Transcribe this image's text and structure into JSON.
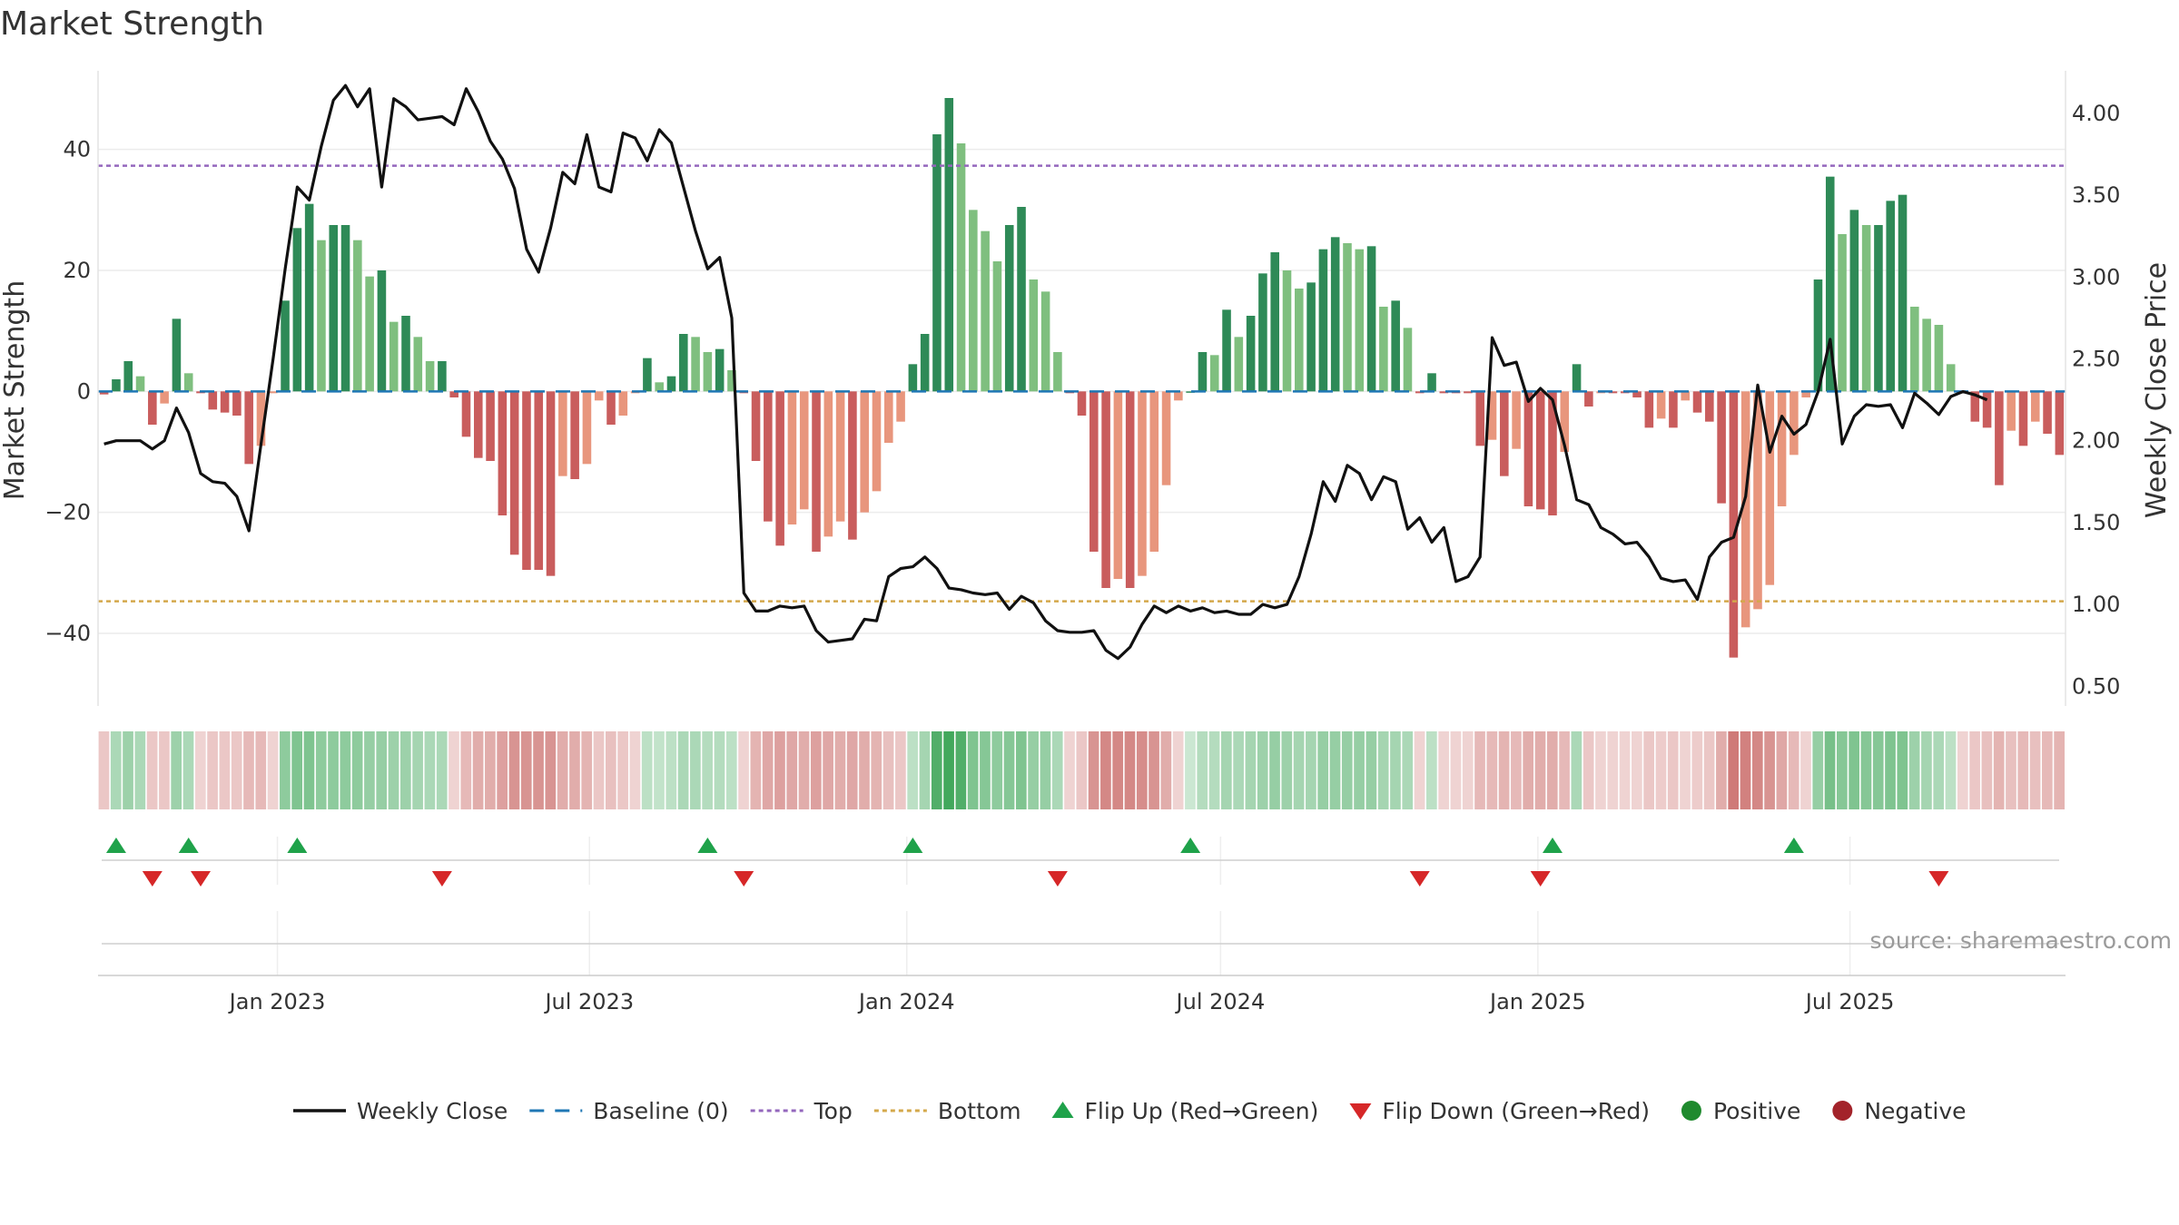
{
  "chart_data": {
    "type": "bar",
    "title": "Market Strength",
    "ylabel_left": "Market Strength",
    "ylabel_right": "Weekly Close Price",
    "ylim_left": [
      -52,
      53
    ],
    "ylim_right": [
      0.38,
      4.26
    ],
    "yticks_left": [
      40,
      20,
      0,
      -20,
      -40
    ],
    "yticks_left_labels": [
      "40",
      "20",
      "0",
      "−20",
      "−40"
    ],
    "yticks_right": [
      4.0,
      3.5,
      3.0,
      2.5,
      2.0,
      1.5,
      1.0,
      0.5
    ],
    "yticks_right_labels": [
      "4.00",
      "3.50",
      "3.00",
      "2.50",
      "2.00",
      "1.50",
      "1.00",
      "0.50"
    ],
    "top_level": 37.3,
    "bottom_level": -34.7,
    "start_date": "2022-09-19",
    "x_ticks": [
      {
        "date": "2023-01-01",
        "label": "Jan 2023"
      },
      {
        "date": "2023-07-01",
        "label": "Jul 2023"
      },
      {
        "date": "2024-01-01",
        "label": "Jan 2024"
      },
      {
        "date": "2024-07-01",
        "label": "Jul 2024"
      },
      {
        "date": "2025-01-01",
        "label": "Jan 2025"
      },
      {
        "date": "2025-07-01",
        "label": "Jul 2025"
      }
    ],
    "strength": [
      -0.5,
      2,
      5,
      2.5,
      -5.5,
      -2,
      12,
      3,
      -0.3,
      -3,
      -3.5,
      -4,
      -12,
      -9,
      -0.3,
      15,
      27,
      31,
      25,
      27.5,
      27.5,
      25,
      19,
      20,
      11.5,
      12.5,
      9,
      5,
      5,
      -1,
      -7.5,
      -11,
      -11.5,
      -20.5,
      -27,
      -29.5,
      -29.5,
      -30.5,
      -14,
      -14.5,
      -12,
      -1.5,
      -5.5,
      -4,
      -0.3,
      5.5,
      1.5,
      2.5,
      9.5,
      9,
      6.5,
      7,
      3.5,
      -0.3,
      -11.5,
      -21.5,
      -25.5,
      -22,
      -19.5,
      -26.5,
      -24,
      -21.5,
      -24.5,
      -20,
      -16.5,
      -8.5,
      -5,
      4.5,
      9.5,
      42.5,
      48.5,
      41,
      30,
      26.5,
      21.5,
      27.5,
      30.5,
      18.5,
      16.5,
      6.5,
      -0.3,
      -4,
      -26.5,
      -32.5,
      -31,
      -32.5,
      -30.5,
      -26.5,
      -15.5,
      -1.5,
      0,
      6.5,
      6,
      13.5,
      9,
      12.5,
      19.5,
      23,
      20,
      17,
      18,
      23.5,
      25.5,
      24.5,
      23.5,
      24,
      14,
      15,
      10.5,
      -0.3,
      3,
      -0.3,
      -0.3,
      -0.3,
      -9,
      -8,
      -14,
      -9.5,
      -19,
      -19.5,
      -20.5,
      -10,
      4.5,
      -2.5,
      -0.3,
      -0.3,
      -0.3,
      -1,
      -6,
      -4.5,
      -6,
      -1.5,
      -3.5,
      -5,
      -18.5,
      -44,
      -39,
      -36,
      -32,
      -19,
      -10.5,
      -1,
      18.5,
      35.5,
      26,
      30,
      27.5,
      27.5,
      31.5,
      32.5,
      14,
      12,
      11,
      4.5,
      -0.3,
      -5,
      -6,
      -15.5,
      -6.5,
      -9,
      -5,
      -7,
      -10.5
    ],
    "close": [
      1.98,
      2.0,
      2.0,
      2.0,
      1.95,
      2.0,
      2.2,
      2.05,
      1.8,
      1.75,
      1.74,
      1.66,
      1.45,
      1.98,
      2.5,
      3.05,
      3.55,
      3.47,
      3.8,
      4.08,
      4.17,
      4.04,
      4.15,
      3.55,
      4.09,
      4.04,
      3.96,
      3.97,
      3.98,
      3.93,
      4.15,
      4.01,
      3.83,
      3.72,
      3.54,
      3.17,
      3.03,
      3.3,
      3.64,
      3.57,
      3.87,
      3.55,
      3.52,
      3.88,
      3.85,
      3.71,
      3.9,
      3.82,
      3.55,
      3.28,
      3.05,
      3.12,
      2.75,
      1.07,
      0.96,
      0.96,
      0.99,
      0.98,
      0.99,
      0.84,
      0.77,
      0.78,
      0.79,
      0.91,
      0.9,
      1.17,
      1.22,
      1.23,
      1.29,
      1.22,
      1.1,
      1.09,
      1.07,
      1.06,
      1.07,
      0.97,
      1.05,
      1.01,
      0.9,
      0.84,
      0.83,
      0.83,
      0.84,
      0.72,
      0.67,
      0.74,
      0.88,
      0.99,
      0.95,
      0.99,
      0.96,
      0.98,
      0.95,
      0.96,
      0.94,
      0.94,
      1.0,
      0.98,
      1.0,
      1.17,
      1.43,
      1.75,
      1.63,
      1.85,
      1.8,
      1.64,
      1.78,
      1.75,
      1.46,
      1.53,
      1.38,
      1.47,
      1.14,
      1.17,
      1.29,
      2.63,
      2.46,
      2.48,
      2.24,
      2.32,
      2.25,
      1.97,
      1.64,
      1.61,
      1.47,
      1.43,
      1.37,
      1.38,
      1.29,
      1.16,
      1.14,
      1.15,
      1.03,
      1.29,
      1.38,
      1.41,
      1.66,
      2.34,
      1.93,
      2.15,
      2.04,
      2.1,
      2.3,
      2.62,
      1.98,
      2.15,
      2.22,
      2.21,
      2.22,
      2.08,
      2.29,
      2.23,
      2.16,
      2.27,
      2.3,
      2.28,
      2.25
    ],
    "heat": [
      0.2,
      0.3,
      0.4,
      0.3,
      0.2,
      0.2,
      0.4,
      0.3,
      0.1,
      0.2,
      0.2,
      0.2,
      0.3,
      0.3,
      0.1,
      0.5,
      0.6,
      0.6,
      0.5,
      0.5,
      0.5,
      0.5,
      0.45,
      0.45,
      0.4,
      0.4,
      0.35,
      0.3,
      0.3,
      0.1,
      0.3,
      0.4,
      0.4,
      0.5,
      0.6,
      0.6,
      0.6,
      0.6,
      0.4,
      0.4,
      0.35,
      0.2,
      0.25,
      0.2,
      0.1,
      0.2,
      0.15,
      0.2,
      0.3,
      0.3,
      0.25,
      0.25,
      0.2,
      0.1,
      0.35,
      0.45,
      0.5,
      0.45,
      0.4,
      0.5,
      0.45,
      0.4,
      0.45,
      0.4,
      0.35,
      0.25,
      0.2,
      0.2,
      0.35,
      0.9,
      1.0,
      0.9,
      0.6,
      0.55,
      0.5,
      0.55,
      0.6,
      0.45,
      0.45,
      0.3,
      0.1,
      0.2,
      0.6,
      0.7,
      0.7,
      0.7,
      0.65,
      0.6,
      0.4,
      0.1,
      0.1,
      0.25,
      0.25,
      0.35,
      0.3,
      0.35,
      0.4,
      0.45,
      0.4,
      0.35,
      0.35,
      0.45,
      0.45,
      0.45,
      0.45,
      0.45,
      0.35,
      0.35,
      0.3,
      0.1,
      0.2,
      0.1,
      0.1,
      0.1,
      0.3,
      0.3,
      0.35,
      0.3,
      0.4,
      0.4,
      0.4,
      0.3,
      0.3,
      0.2,
      0.1,
      0.1,
      0.1,
      0.1,
      0.2,
      0.15,
      0.2,
      0.1,
      0.15,
      0.2,
      0.4,
      0.8,
      0.75,
      0.7,
      0.6,
      0.45,
      0.3,
      0.1,
      0.45,
      0.65,
      0.55,
      0.6,
      0.55,
      0.55,
      0.6,
      0.6,
      0.4,
      0.35,
      0.3,
      0.2,
      0.1,
      0.2,
      0.25,
      0.35,
      0.25,
      0.3,
      0.25,
      0.3,
      0.35
    ],
    "flip_up": [
      1,
      7,
      16,
      50,
      67,
      90,
      120,
      140
    ],
    "flip_down": [
      4,
      8,
      28,
      53,
      79,
      109,
      119,
      152
    ]
  },
  "legend": [
    {
      "type": "line",
      "label": "Weekly Close",
      "color": "#111111"
    },
    {
      "type": "dash",
      "label": "Baseline (0)",
      "color": "#1f77b4"
    },
    {
      "type": "dot",
      "label": "Top",
      "color": "#9467bd"
    },
    {
      "type": "dot",
      "label": "Bottom",
      "color": "#d4a84b"
    },
    {
      "type": "tri-up",
      "label": "Flip Up (Red→Green)",
      "color": "#1fa24a"
    },
    {
      "type": "tri-down",
      "label": "Flip Down (Green→Red)",
      "color": "#d62728"
    },
    {
      "type": "circle",
      "label": "Positive",
      "color": "#1f8a2e"
    },
    {
      "type": "circle",
      "label": "Negative",
      "color": "#a3232a"
    }
  ],
  "source": "source: sharemaestro.com",
  "colors": {
    "pos_dark": "#2e8a57",
    "pos_light": "#7fbf7f",
    "neg_dark": "#c95d5d",
    "neg_light": "#e8967d",
    "close_line": "#111111",
    "top_line": "#9467bd",
    "bottom_line": "#d4a84b",
    "baseline": "#1f77b4",
    "heat_pos": "#2e9e4a",
    "heat_neg": "#c0504d",
    "flip_up": "#1fa24a",
    "flip_down": "#d62728"
  }
}
